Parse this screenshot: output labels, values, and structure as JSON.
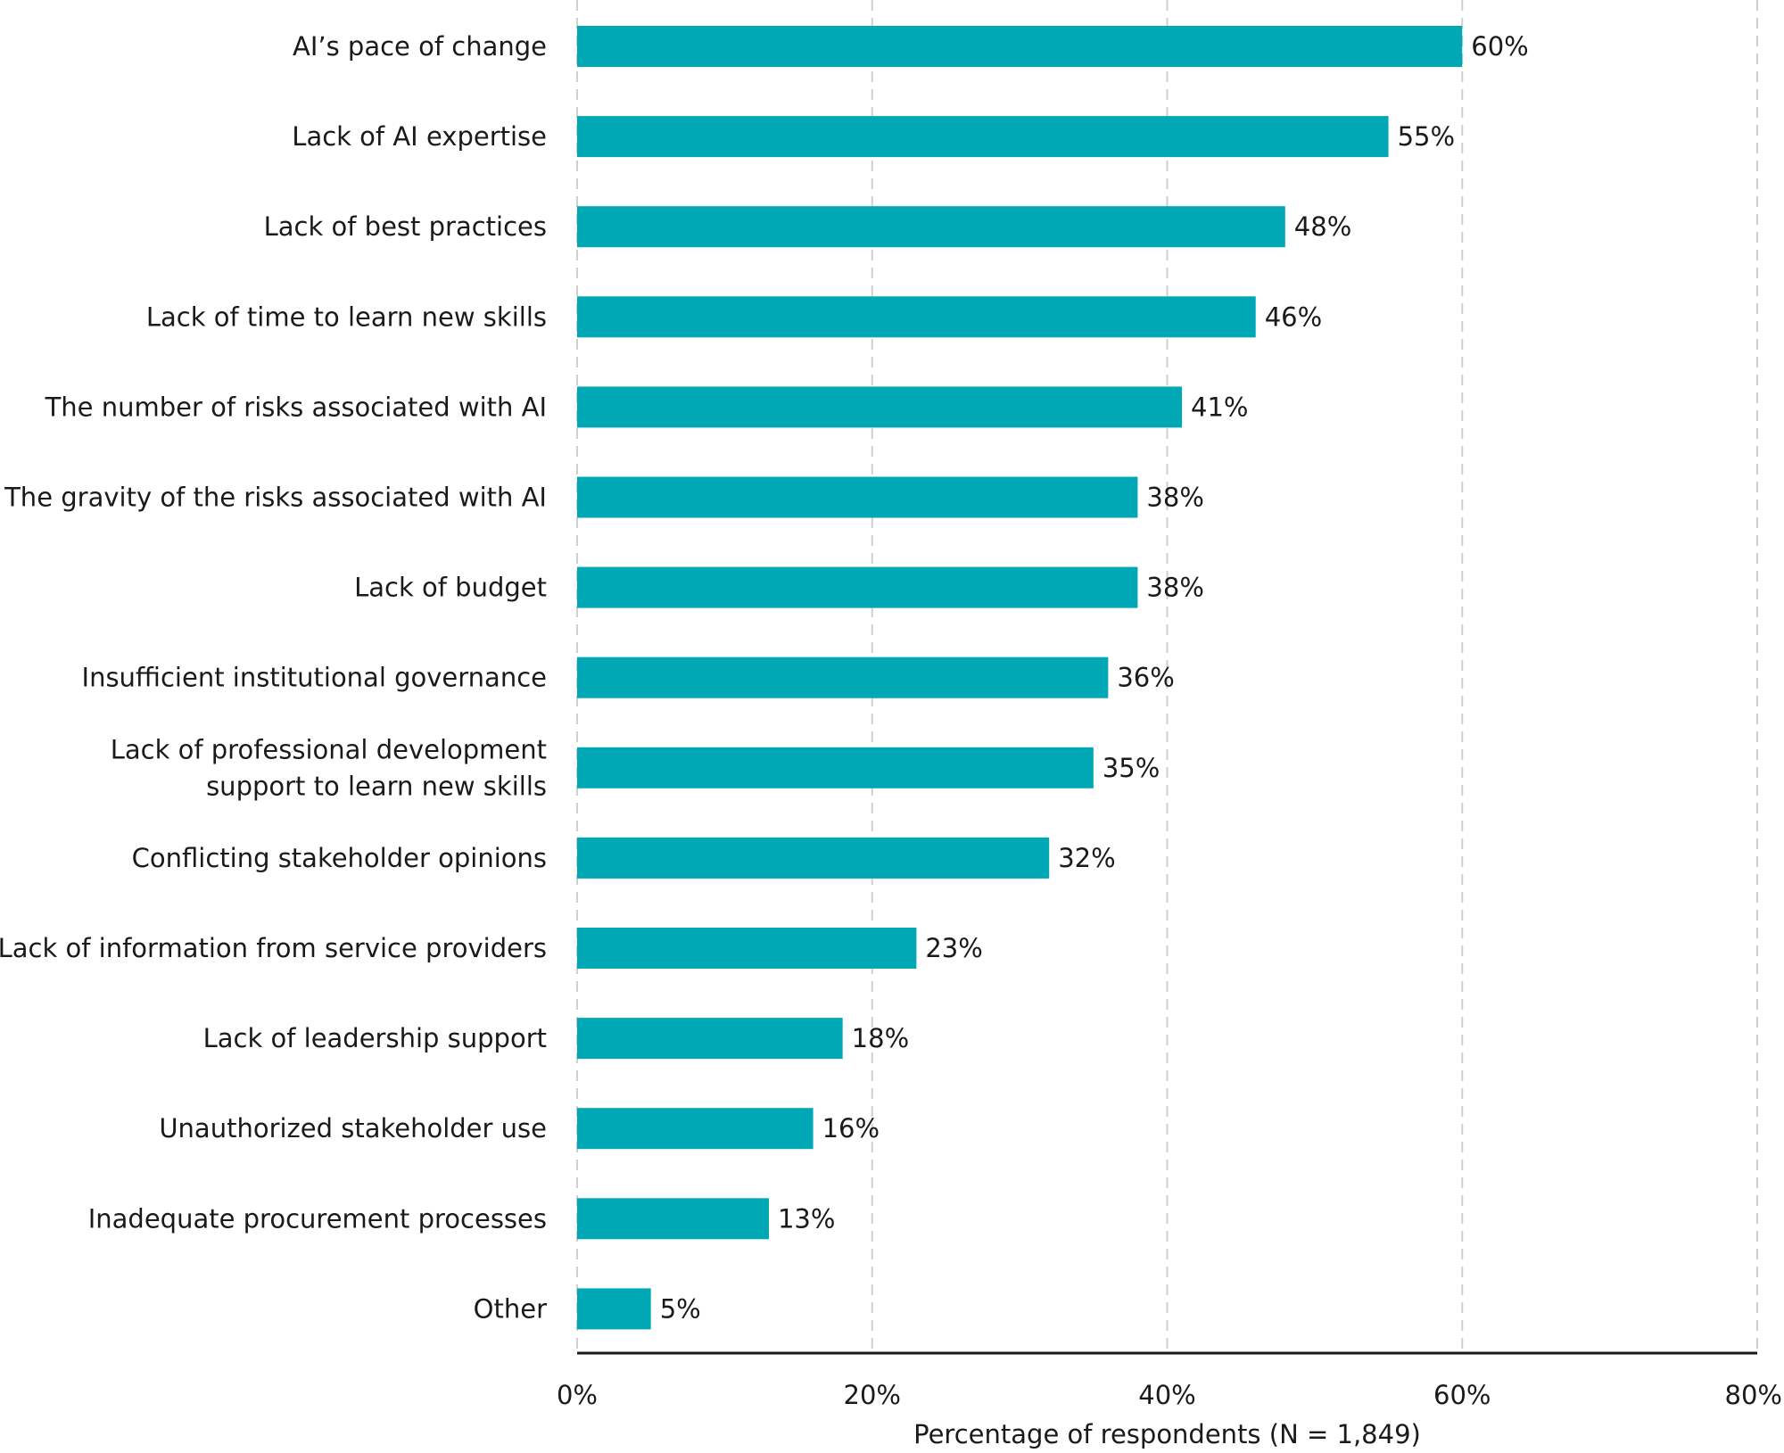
{
  "chart_data": {
    "type": "bar",
    "orientation": "horizontal",
    "categories": [
      [
        "AI’s pace of change"
      ],
      [
        "Lack of AI expertise"
      ],
      [
        "Lack of best practices"
      ],
      [
        "Lack of time to learn new skills"
      ],
      [
        "The number of risks associated with AI"
      ],
      [
        "The gravity of the risks associated with AI"
      ],
      [
        "Lack of budget"
      ],
      [
        "Insufficient institutional governance"
      ],
      [
        "Lack of professional development",
        "support to learn new skills"
      ],
      [
        "Conflicting stakeholder opinions"
      ],
      [
        "Lack of information from service providers"
      ],
      [
        "Lack of leadership support"
      ],
      [
        "Unauthorized stakeholder use"
      ],
      [
        "Inadequate procurement processes"
      ],
      [
        "Other"
      ]
    ],
    "values": [
      60,
      55,
      48,
      46,
      41,
      38,
      38,
      36,
      35,
      32,
      23,
      18,
      16,
      13,
      5
    ],
    "data_labels": [
      "60%",
      "55%",
      "48%",
      "46%",
      "41%",
      "38%",
      "38%",
      "36%",
      "35%",
      "32%",
      "23%",
      "18%",
      "16%",
      "13%",
      "5%"
    ],
    "xlim": [
      0,
      80
    ],
    "xticks": [
      0,
      20,
      40,
      60,
      80
    ],
    "xtick_labels": [
      "0%",
      "20%",
      "40%",
      "60%",
      "80%"
    ],
    "xlabel": "Percentage of respondents (N = 1,849)",
    "grid": "vertical dashed",
    "bar_color": "#00a8b5"
  }
}
